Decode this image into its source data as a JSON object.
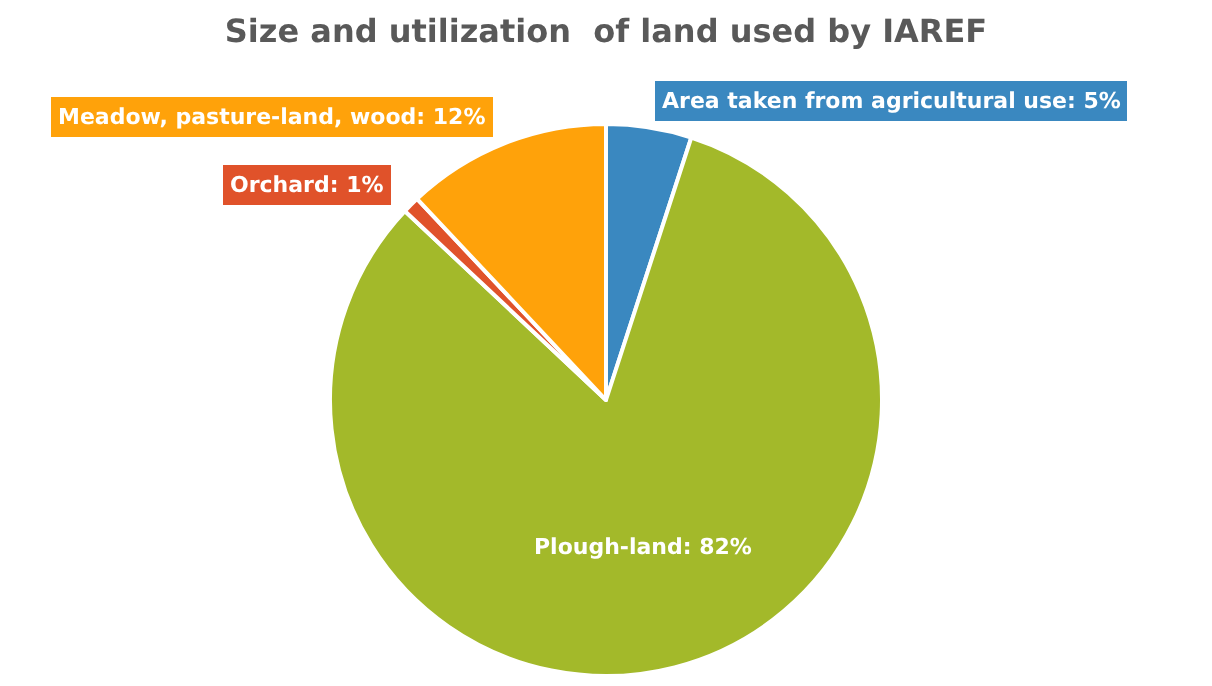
{
  "chart_data": {
    "type": "pie",
    "title": "Size and utilization  of land used by IAREF",
    "categories": [
      "Area taken from agricultural use",
      "Plough-land",
      "Orchard",
      "Meadow, pasture-land, wood"
    ],
    "values": [
      5,
      82,
      1,
      12
    ],
    "value_labels": [
      "5%",
      "82%",
      "1%",
      "12%"
    ],
    "colors": [
      "#3a88c0",
      "#a3b92a",
      "#e0522a",
      "#ffa20a"
    ],
    "data_labels": true,
    "legend": false
  }
}
